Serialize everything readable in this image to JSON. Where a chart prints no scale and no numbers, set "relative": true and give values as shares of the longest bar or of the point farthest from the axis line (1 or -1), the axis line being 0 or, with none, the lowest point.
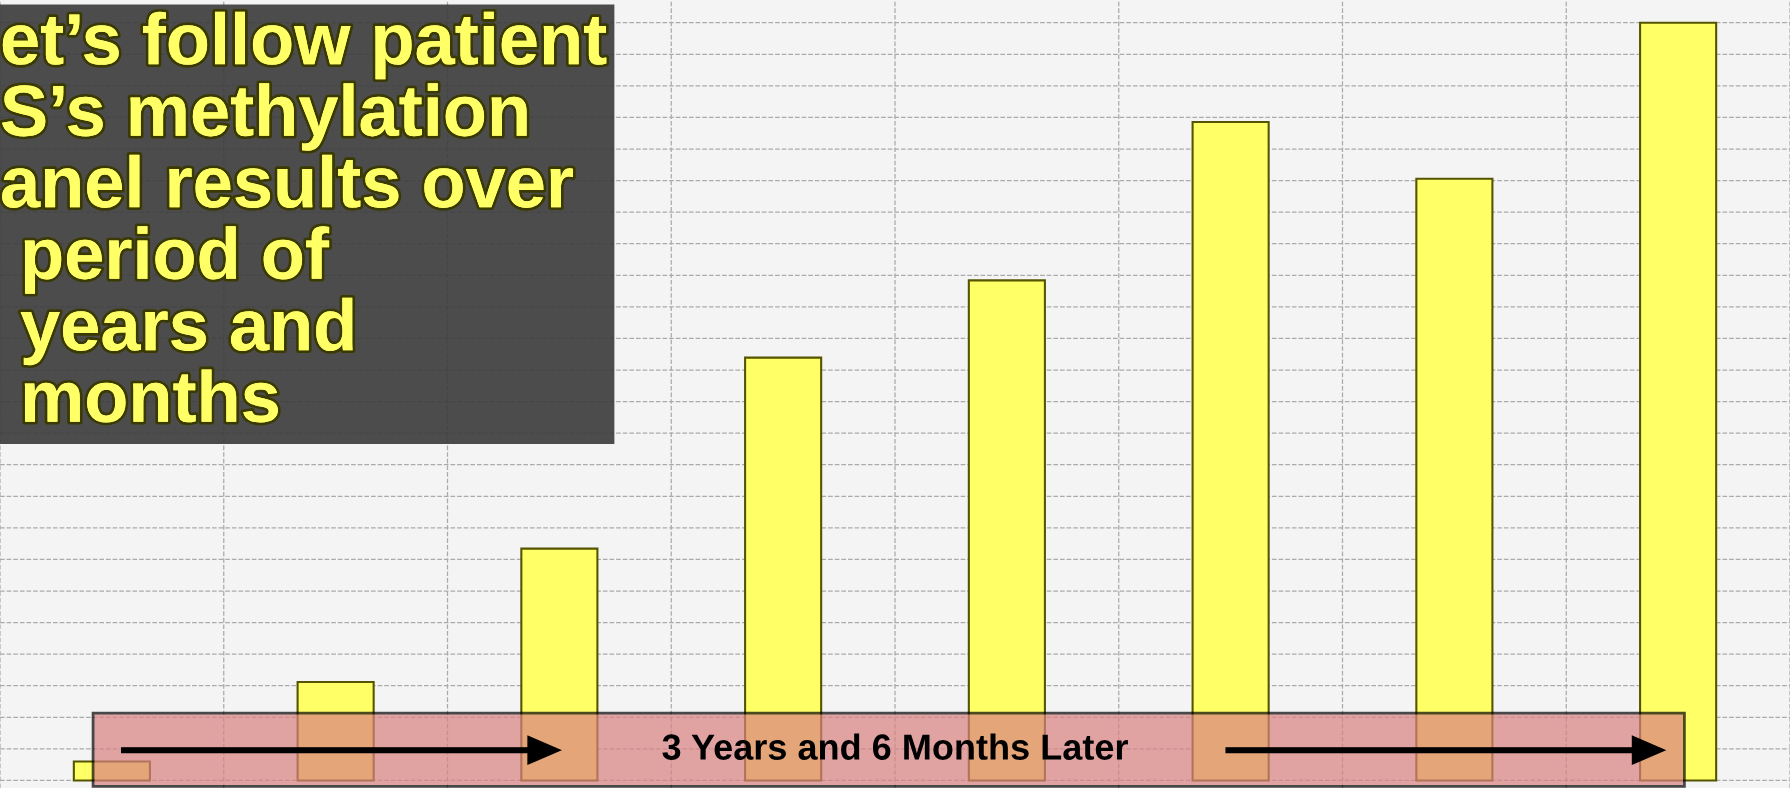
{
  "chart_data": {
    "type": "bar",
    "relative": true,
    "title": "et’s follow patient\nS’s methylation\nanel results over\n period of\n years and\n months",
    "categories": [
      null,
      null,
      null,
      null,
      null,
      null,
      null,
      null
    ],
    "values": [
      0.025,
      0.13,
      0.306,
      0.558,
      0.66,
      0.869,
      0.794,
      1
    ],
    "color": "#ffff66",
    "grid": true,
    "annotations": [
      "3 Years and 6 Months Later"
    ]
  }
}
